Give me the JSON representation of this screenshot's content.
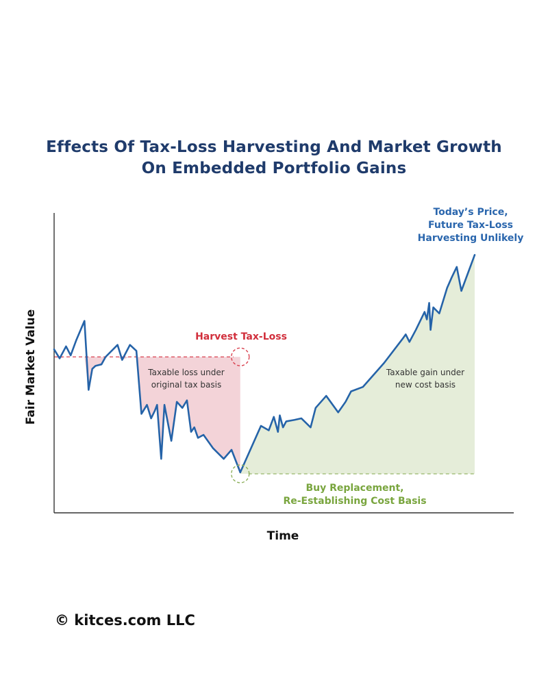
{
  "chart_data": {
    "type": "line",
    "title_line1": "Effects Of Tax-Loss Harvesting And Market Growth",
    "title_line2": "On Embedded Portfolio Gains",
    "xlabel": "Time",
    "ylabel": "Fair Market Value",
    "grid": false,
    "xlim": [
      0,
      100
    ],
    "ylim": [
      0,
      100
    ],
    "original_basis": 52,
    "new_basis": 13,
    "harvest_x": 40.5,
    "end_x": 91.5,
    "series": [
      {
        "color": "#2563a8",
        "x": [
          0,
          1.2,
          2.6,
          3.6,
          4.8,
          6.6,
          7.5,
          8.3,
          9.0,
          10.3,
          11.2,
          13.8,
          14.8,
          16.5,
          17.9,
          19.0,
          20.2,
          21.1,
          21.9,
          22.4,
          23.3,
          24.0,
          25.5,
          26.7,
          27.9,
          28.9,
          29.8,
          30.5,
          31.3,
          32.5,
          34.6,
          36.9,
          38.6,
          40.5
        ],
        "y": [
          54.5,
          51.5,
          55.5,
          52.5,
          57.5,
          64.0,
          41.0,
          48.0,
          49.0,
          49.5,
          52.0,
          56.0,
          51.0,
          56.0,
          54.0,
          33.0,
          36.0,
          31.5,
          34.0,
          36.0,
          18.0,
          36.0,
          24.0,
          37.0,
          35.0,
          37.5,
          27.0,
          28.5,
          25.0,
          26.0,
          21.5,
          18.0,
          21.0,
          13.5
        ]
      },
      {
        "color": "#2563a8",
        "x": [
          40.5,
          45.0,
          46.7,
          47.8,
          48.7,
          49.1,
          49.8,
          50.5,
          52.3,
          53.8,
          55.8,
          56.9,
          59.2,
          61.8,
          63.4,
          64.6,
          67.2,
          71.8,
          75.8,
          76.5,
          77.3,
          78.7,
          80.6,
          81.1,
          81.6,
          81.9,
          82.5,
          83.8,
          85.5,
          86.5,
          87.6,
          88.6,
          91.5
        ],
        "y": [
          13.5,
          29.0,
          27.5,
          32.0,
          27.0,
          32.5,
          28.5,
          30.5,
          31.0,
          31.5,
          28.5,
          35.0,
          39.0,
          33.5,
          37.0,
          40.5,
          42.0,
          50.0,
          58.0,
          59.5,
          57.0,
          61.0,
          67.0,
          64.5,
          70.0,
          61.0,
          68.5,
          66.5,
          75.0,
          78.5,
          82.0,
          74.0,
          86.0
        ]
      }
    ],
    "annotations": {
      "harvest": "Harvest Tax-Loss",
      "buy_line1": "Buy Replacement,",
      "buy_line2": "Re-Establishing Cost Basis",
      "today_line1": "Today’s Price,",
      "today_line2": "Future Tax-Loss",
      "today_line3": "Harvesting Unlikely",
      "loss_line1": "Taxable loss under",
      "loss_line2": "original tax basis",
      "gain_line1": "Taxable gain under",
      "gain_line2": "new cost basis"
    },
    "colors": {
      "line": "#2563a8",
      "loss_fill": "#f3d3d8",
      "loss_stroke": "#d9404e",
      "gain_fill": "#e5edd9",
      "gain_stroke": "#8db05c",
      "title": "#1f3b6b",
      "today_text": "#2a66ad",
      "harvest_text": "#d12f3c",
      "buy_text": "#79a53e"
    }
  },
  "footer": {
    "copyright": "© kitces.com LLC"
  }
}
